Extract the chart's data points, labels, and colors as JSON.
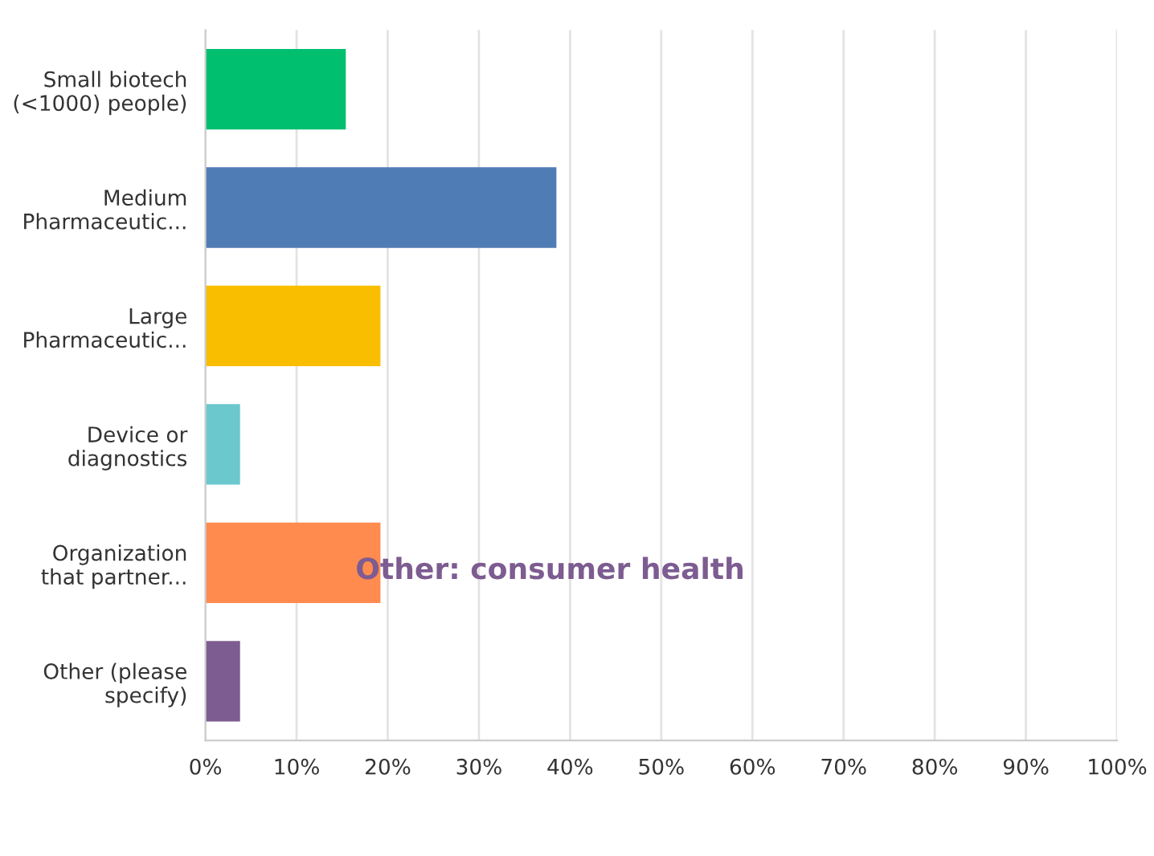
{
  "chart_data": {
    "type": "bar",
    "orientation": "horizontal",
    "categories": [
      "Small biotech\n(<1000) people)",
      "Medium\nPharmaceutic...",
      "Large\nPharmaceutic...",
      "Device or\ndiagnostics",
      "Organization\nthat partner...",
      "Other (please\nspecify)"
    ],
    "values": [
      15.4,
      38.5,
      19.2,
      3.8,
      19.2,
      3.8
    ],
    "colors": [
      "#00bf6f",
      "#507cb6",
      "#f9be00",
      "#6bc8cd",
      "#ff8b4f",
      "#7d5c91"
    ],
    "xlim": [
      0,
      100
    ],
    "xticks": [
      {
        "value": 0,
        "label": "0%"
      },
      {
        "value": 10,
        "label": "10%"
      },
      {
        "value": 20,
        "label": "20%"
      },
      {
        "value": 30,
        "label": "30%"
      },
      {
        "value": 40,
        "label": "40%"
      },
      {
        "value": 50,
        "label": "50%"
      },
      {
        "value": 60,
        "label": "60%"
      },
      {
        "value": 70,
        "label": "70%"
      },
      {
        "value": 80,
        "label": "80%"
      },
      {
        "value": 90,
        "label": "90%"
      },
      {
        "value": 100,
        "label": "100%"
      }
    ],
    "grid": "x",
    "annotations": [
      "Other: consumer health"
    ]
  }
}
